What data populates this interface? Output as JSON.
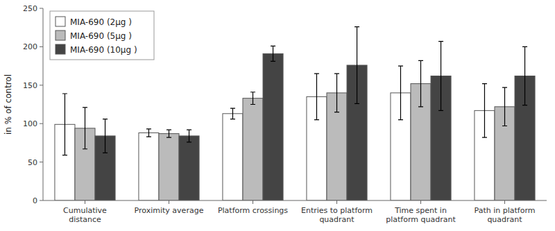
{
  "chart_data": {
    "type": "bar",
    "categories": [
      "Cumulative\ndistance",
      "Proximity average",
      "Platform crossings",
      "Entries to platform\nquadrant",
      "Time spent in\nplatform quadrant",
      "Path in platform\nquadrant"
    ],
    "series": [
      {
        "name": "MIA-690 (2μg )",
        "color": "#ffffff",
        "values": [
          99,
          88,
          113,
          135,
          140,
          117
        ],
        "errors": [
          40,
          5,
          7,
          30,
          35,
          35
        ]
      },
      {
        "name": "MIA-690 (5μg )",
        "color": "#bbbbbb",
        "values": [
          94,
          87,
          133,
          140,
          152,
          122
        ],
        "errors": [
          27,
          5,
          8,
          25,
          30,
          25
        ]
      },
      {
        "name": "MIA-690 (10μg )",
        "color": "#444444",
        "values": [
          84,
          84,
          191,
          176,
          162,
          162
        ],
        "errors": [
          22,
          8,
          10,
          50,
          45,
          38
        ]
      }
    ],
    "ylabel": "in % of control",
    "ylim": [
      0,
      250
    ],
    "yticks": [
      0,
      50,
      100,
      150,
      200,
      250
    ],
    "legend": "upper left"
  }
}
